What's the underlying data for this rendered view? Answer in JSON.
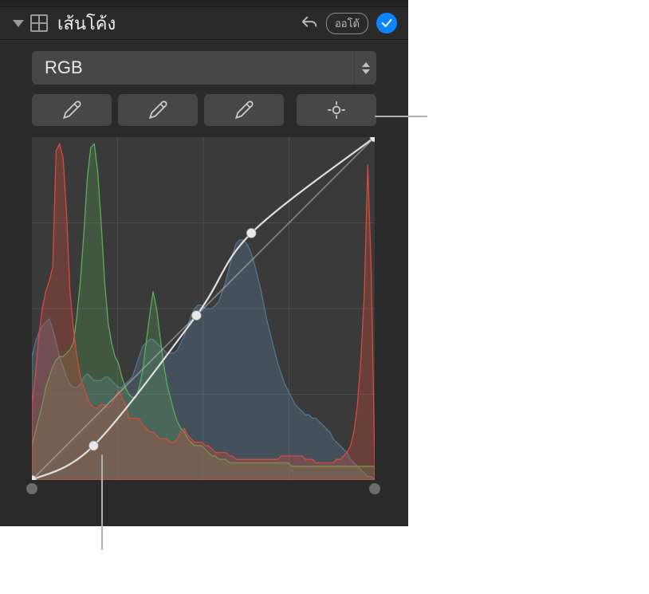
{
  "header": {
    "title": "เส้นโค้ง",
    "auto_label": "ออโต้"
  },
  "channel": {
    "selected": "RGB"
  },
  "curve": {
    "grid_color": "#4c4c4c",
    "diag_color": "#c4c4c4",
    "curve_color": "#e0e0e0",
    "point_fill": "#e8e8e8",
    "points": [
      {
        "x": 0.0,
        "y": 0.0
      },
      {
        "x": 0.18,
        "y": 0.1
      },
      {
        "x": 0.48,
        "y": 0.48
      },
      {
        "x": 0.64,
        "y": 0.72
      },
      {
        "x": 1.0,
        "y": 1.0
      }
    ],
    "histograms": {
      "red": {
        "stroke": "#d64b3b",
        "fill": "rgba(214,75,59,0.30)",
        "values": [
          0.22,
          0.3,
          0.42,
          0.5,
          0.55,
          0.58,
          0.62,
          0.96,
          0.98,
          0.94,
          0.78,
          0.55,
          0.44,
          0.36,
          0.3,
          0.27,
          0.24,
          0.22,
          0.21,
          0.21,
          0.22,
          0.22,
          0.21,
          0.22,
          0.24,
          0.26,
          0.24,
          0.22,
          0.18,
          0.18,
          0.18,
          0.18,
          0.16,
          0.15,
          0.14,
          0.14,
          0.13,
          0.12,
          0.12,
          0.12,
          0.11,
          0.11,
          0.12,
          0.14,
          0.15,
          0.13,
          0.12,
          0.11,
          0.11,
          0.11,
          0.1,
          0.1,
          0.09,
          0.08,
          0.08,
          0.08,
          0.08,
          0.07,
          0.07,
          0.06,
          0.06,
          0.06,
          0.06,
          0.06,
          0.06,
          0.06,
          0.06,
          0.06,
          0.06,
          0.06,
          0.06,
          0.06,
          0.07,
          0.07,
          0.07,
          0.07,
          0.07,
          0.07,
          0.07,
          0.06,
          0.06,
          0.06,
          0.05,
          0.05,
          0.05,
          0.05,
          0.05,
          0.05,
          0.06,
          0.06,
          0.07,
          0.08,
          0.1,
          0.14,
          0.22,
          0.35,
          0.55,
          0.92,
          0.6,
          0.05
        ]
      },
      "green": {
        "stroke": "#58b054",
        "fill": "rgba(88,176,84,0.25)",
        "values": [
          0.1,
          0.14,
          0.18,
          0.22,
          0.27,
          0.3,
          0.33,
          0.35,
          0.36,
          0.36,
          0.37,
          0.38,
          0.4,
          0.48,
          0.58,
          0.72,
          0.88,
          0.97,
          0.98,
          0.9,
          0.75,
          0.58,
          0.46,
          0.4,
          0.36,
          0.34,
          0.3,
          0.27,
          0.25,
          0.24,
          0.24,
          0.27,
          0.32,
          0.4,
          0.48,
          0.55,
          0.5,
          0.42,
          0.34,
          0.28,
          0.24,
          0.2,
          0.17,
          0.15,
          0.14,
          0.12,
          0.11,
          0.1,
          0.1,
          0.1,
          0.09,
          0.08,
          0.07,
          0.07,
          0.06,
          0.06,
          0.06,
          0.05,
          0.05,
          0.05,
          0.05,
          0.05,
          0.05,
          0.05,
          0.05,
          0.05,
          0.05,
          0.05,
          0.05,
          0.05,
          0.05,
          0.05,
          0.05,
          0.05,
          0.05,
          0.04,
          0.04,
          0.04,
          0.04,
          0.04,
          0.04,
          0.04,
          0.04,
          0.04,
          0.04,
          0.04,
          0.04,
          0.04,
          0.04,
          0.04,
          0.04,
          0.04,
          0.04,
          0.04,
          0.04,
          0.04,
          0.04,
          0.04,
          0.04,
          0.04
        ]
      },
      "blue": {
        "stroke": "#56748e",
        "fill": "rgba(86,116,142,0.40)",
        "values": [
          0.36,
          0.4,
          0.43,
          0.45,
          0.46,
          0.47,
          0.44,
          0.4,
          0.36,
          0.33,
          0.3,
          0.28,
          0.27,
          0.27,
          0.28,
          0.3,
          0.31,
          0.3,
          0.29,
          0.29,
          0.29,
          0.3,
          0.3,
          0.29,
          0.28,
          0.27,
          0.27,
          0.28,
          0.29,
          0.3,
          0.33,
          0.36,
          0.39,
          0.4,
          0.41,
          0.41,
          0.4,
          0.39,
          0.38,
          0.37,
          0.37,
          0.37,
          0.38,
          0.4,
          0.42,
          0.45,
          0.48,
          0.5,
          0.51,
          0.51,
          0.5,
          0.5,
          0.5,
          0.51,
          0.52,
          0.55,
          0.58,
          0.62,
          0.66,
          0.69,
          0.7,
          0.7,
          0.69,
          0.67,
          0.64,
          0.6,
          0.56,
          0.51,
          0.46,
          0.42,
          0.38,
          0.34,
          0.31,
          0.28,
          0.26,
          0.24,
          0.22,
          0.21,
          0.2,
          0.19,
          0.19,
          0.18,
          0.18,
          0.17,
          0.16,
          0.15,
          0.14,
          0.12,
          0.11,
          0.1,
          0.09,
          0.08,
          0.06,
          0.05,
          0.04,
          0.03,
          0.02,
          0.01,
          0.01,
          0.0
        ]
      }
    }
  }
}
